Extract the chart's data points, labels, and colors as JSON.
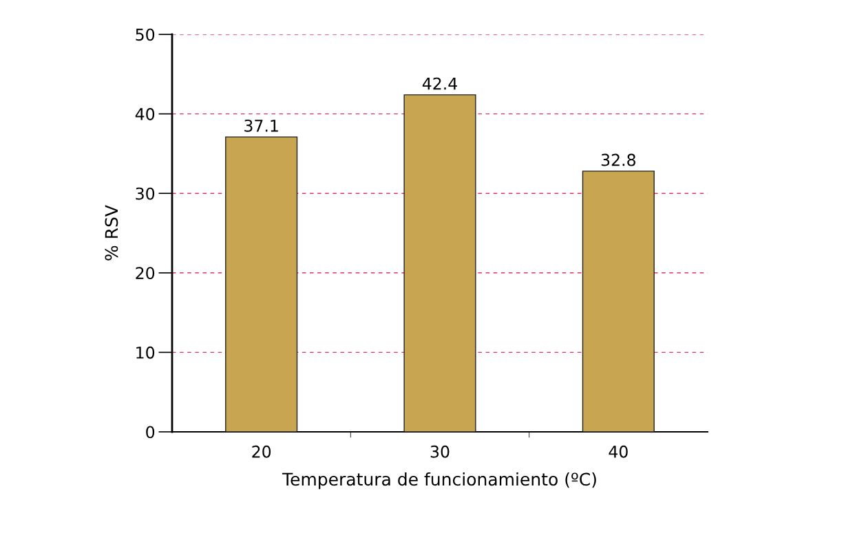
{
  "chart_data": {
    "type": "bar",
    "xlabel": "Temperatura de funcionamiento (ºC)",
    "ylabel": "% RSV",
    "categories": [
      "20",
      "30",
      "40"
    ],
    "values": [
      37.1,
      42.4,
      32.8
    ],
    "color": "#c8a550",
    "ylim": [
      0,
      50
    ],
    "yticks": [
      0,
      10,
      20,
      30,
      40,
      50
    ],
    "grid": "y",
    "data_labels": true
  }
}
